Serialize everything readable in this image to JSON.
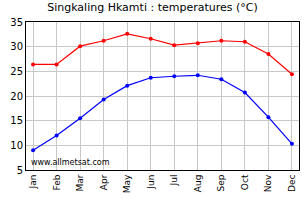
{
  "chart_data": {
    "type": "line",
    "title": "Singkaling Hkamti : temperatures (°C)",
    "categories": [
      "Jan",
      "Feb",
      "Mar",
      "Apr",
      "May",
      "Jun",
      "Jul",
      "Aug",
      "Sep",
      "Oct",
      "Nov",
      "Dec"
    ],
    "series": [
      {
        "color": "#ff0000",
        "marker": "circle",
        "values": [
          26.4,
          26.4,
          30.1,
          31.2,
          32.6,
          31.6,
          30.3,
          30.7,
          31.2,
          31.0,
          28.5,
          24.4
        ]
      },
      {
        "color": "#0000ff",
        "marker": "circle",
        "values": [
          9.0,
          12.0,
          15.5,
          19.3,
          22.1,
          23.7,
          24.0,
          24.2,
          23.4,
          20.7,
          15.7,
          10.3
        ]
      }
    ],
    "ylim": [
      5,
      35
    ],
    "yticks": [
      5,
      10,
      15,
      20,
      25,
      30,
      35
    ],
    "grid": true,
    "annotations": [
      {
        "text": "www.allmetsat.com"
      }
    ]
  }
}
